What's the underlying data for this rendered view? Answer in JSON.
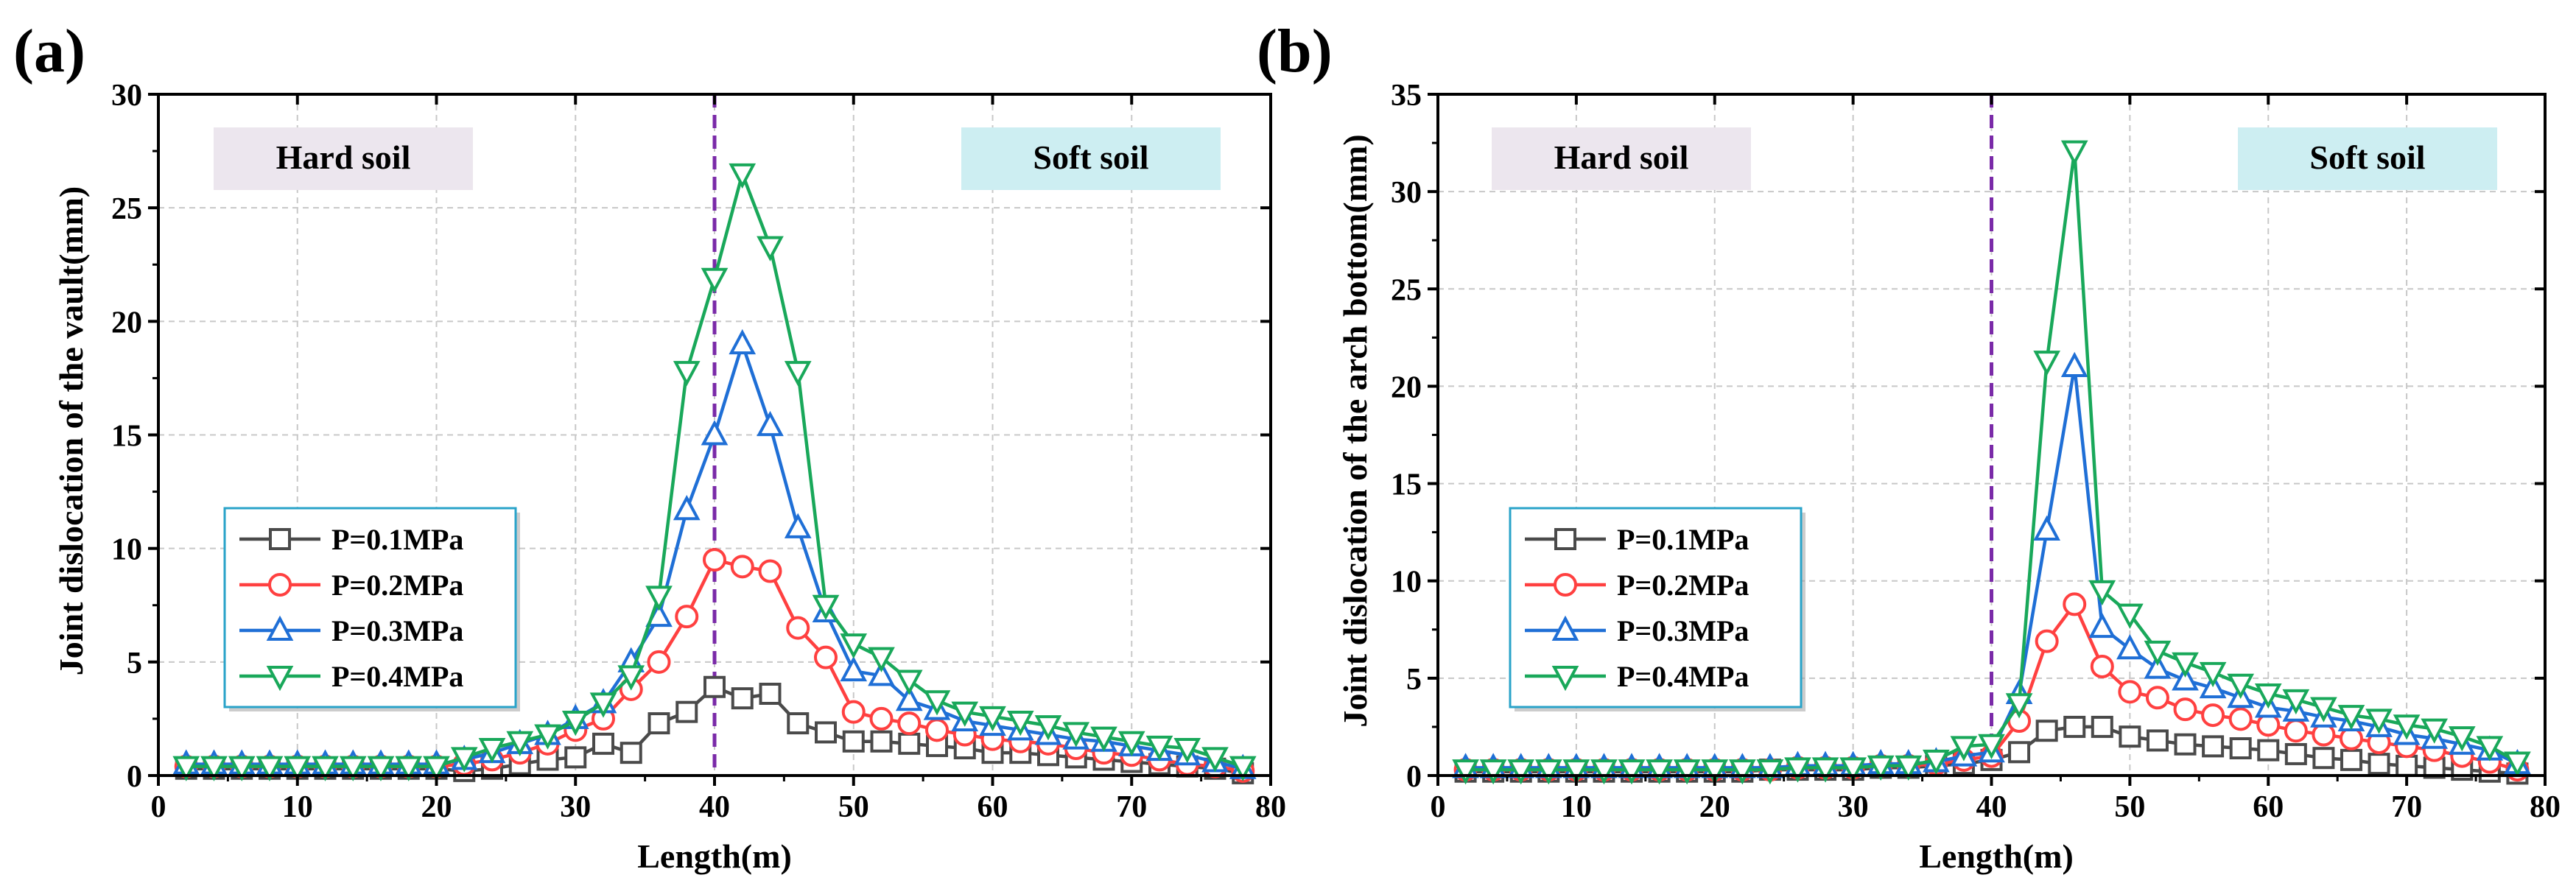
{
  "colors": {
    "s1": "#4a4a4a",
    "s2": "#ff4040",
    "s3": "#1f6fd6",
    "s4": "#19a85a",
    "panel_label": "#1a1ae6",
    "divider": "#7a2aa8",
    "hard_bg": "#ece6ee",
    "soft_bg": "#cdeef2",
    "legend_border": "#29a3c9"
  },
  "chart_data": [
    {
      "type": "line",
      "panel_label": "(a)",
      "title": "",
      "xlabel": "Length(m)",
      "ylabel": "Joint dislocation of the vault(mm)",
      "xlim": [
        0,
        80
      ],
      "ylim": [
        0,
        30
      ],
      "xticks": [
        0,
        10,
        20,
        30,
        40,
        50,
        60,
        70,
        80
      ],
      "yticks": [
        0,
        5,
        10,
        15,
        20,
        25,
        30
      ],
      "grid": true,
      "divider_x": 40,
      "region_labels": {
        "left": "Hard soil",
        "right": "Soft soil"
      },
      "legend_position": "lower-left",
      "x": [
        2,
        4,
        6,
        8,
        10,
        12,
        14,
        16,
        18,
        20,
        22,
        24,
        26,
        28,
        30,
        32,
        34,
        36,
        38,
        40,
        42,
        44,
        46,
        48,
        50,
        52,
        54,
        56,
        58,
        60,
        62,
        64,
        66,
        68,
        70,
        72,
        74,
        76,
        78
      ],
      "series": [
        {
          "name": "P=0.1MPa",
          "marker": "square",
          "values": [
            0.3,
            0.3,
            0.3,
            0.3,
            0.3,
            0.3,
            0.3,
            0.3,
            0.3,
            0.3,
            0.2,
            0.3,
            0.5,
            0.7,
            0.8,
            1.4,
            1.0,
            2.3,
            2.8,
            3.9,
            3.4,
            3.6,
            2.3,
            1.9,
            1.5,
            1.5,
            1.4,
            1.3,
            1.2,
            1.0,
            1.0,
            0.9,
            0.8,
            0.7,
            0.6,
            0.5,
            0.4,
            0.3,
            0.1
          ]
        },
        {
          "name": "P=0.2MPa",
          "marker": "circle",
          "values": [
            0.4,
            0.4,
            0.4,
            0.4,
            0.4,
            0.4,
            0.4,
            0.4,
            0.4,
            0.4,
            0.5,
            0.7,
            1.0,
            1.4,
            2.0,
            2.5,
            3.8,
            5.0,
            7.0,
            9.5,
            9.2,
            9.0,
            6.5,
            5.2,
            2.8,
            2.5,
            2.3,
            2.0,
            1.8,
            1.6,
            1.5,
            1.4,
            1.2,
            1.0,
            0.9,
            0.7,
            0.5,
            0.4,
            0.2
          ]
        },
        {
          "name": "P=0.3MPa",
          "marker": "triangle-up",
          "values": [
            0.5,
            0.5,
            0.5,
            0.5,
            0.5,
            0.5,
            0.5,
            0.5,
            0.5,
            0.5,
            0.7,
            1.0,
            1.4,
            1.8,
            2.5,
            3.2,
            5.0,
            7.0,
            11.7,
            15.0,
            19.0,
            15.4,
            10.9,
            7.2,
            4.6,
            4.4,
            3.3,
            2.9,
            2.4,
            2.2,
            2.0,
            1.8,
            1.6,
            1.5,
            1.3,
            1.1,
            0.9,
            0.6,
            0.3
          ]
        },
        {
          "name": "P=0.4MPa",
          "marker": "triangle-down",
          "values": [
            0.4,
            0.4,
            0.4,
            0.4,
            0.4,
            0.4,
            0.4,
            0.4,
            0.4,
            0.4,
            0.8,
            1.2,
            1.5,
            1.8,
            2.4,
            3.2,
            4.4,
            7.9,
            17.8,
            21.9,
            26.5,
            23.3,
            17.8,
            7.5,
            5.8,
            5.2,
            4.2,
            3.3,
            2.8,
            2.6,
            2.4,
            2.2,
            1.9,
            1.7,
            1.5,
            1.3,
            1.2,
            0.8,
            0.4
          ]
        }
      ]
    },
    {
      "type": "line",
      "panel_label": "(b)",
      "title": "",
      "xlabel": "Length(m)",
      "ylabel": "Joint dislocation of the arch bottom(mm)",
      "xlim": [
        0,
        80
      ],
      "ylim": [
        0,
        35
      ],
      "xticks": [
        0,
        10,
        20,
        30,
        40,
        50,
        60,
        70,
        80
      ],
      "yticks": [
        0,
        5,
        10,
        15,
        20,
        25,
        30,
        35
      ],
      "grid": true,
      "divider_x": 40,
      "region_labels": {
        "left": "Hard soil",
        "right": "Soft soil"
      },
      "legend_position": "lower-left",
      "x": [
        2,
        4,
        6,
        8,
        10,
        12,
        14,
        16,
        18,
        20,
        22,
        24,
        26,
        28,
        30,
        32,
        34,
        36,
        38,
        40,
        42,
        44,
        46,
        48,
        50,
        52,
        54,
        56,
        58,
        60,
        62,
        64,
        66,
        68,
        70,
        72,
        74,
        76,
        78
      ],
      "series": [
        {
          "name": "P=0.1MPa",
          "marker": "square",
          "values": [
            0.2,
            0.2,
            0.2,
            0.2,
            0.2,
            0.2,
            0.2,
            0.2,
            0.2,
            0.2,
            0.2,
            0.3,
            0.3,
            0.3,
            0.3,
            0.4,
            0.4,
            0.5,
            0.6,
            0.8,
            1.2,
            2.3,
            2.5,
            2.5,
            2.0,
            1.8,
            1.6,
            1.5,
            1.4,
            1.3,
            1.1,
            0.9,
            0.8,
            0.6,
            0.5,
            0.4,
            0.3,
            0.2,
            0.1
          ]
        },
        {
          "name": "P=0.2MPa",
          "marker": "circle",
          "values": [
            0.3,
            0.3,
            0.3,
            0.3,
            0.3,
            0.3,
            0.3,
            0.3,
            0.3,
            0.3,
            0.3,
            0.3,
            0.4,
            0.4,
            0.4,
            0.5,
            0.5,
            0.6,
            0.8,
            1.0,
            2.8,
            6.9,
            8.8,
            5.6,
            4.3,
            4.0,
            3.4,
            3.1,
            2.9,
            2.6,
            2.3,
            2.1,
            1.9,
            1.7,
            1.5,
            1.3,
            1.0,
            0.7,
            0.3
          ]
        },
        {
          "name": "P=0.3MPa",
          "marker": "triangle-up",
          "values": [
            0.4,
            0.4,
            0.4,
            0.4,
            0.4,
            0.4,
            0.4,
            0.4,
            0.4,
            0.4,
            0.4,
            0.4,
            0.5,
            0.5,
            0.5,
            0.6,
            0.6,
            0.7,
            1.0,
            1.2,
            4.2,
            12.6,
            21.0,
            7.6,
            6.5,
            5.5,
            4.9,
            4.5,
            4.0,
            3.5,
            3.3,
            3.0,
            2.8,
            2.5,
            2.1,
            1.9,
            1.6,
            1.3,
            0.6
          ]
        },
        {
          "name": "P=0.4MPa",
          "marker": "triangle-down",
          "values": [
            0.3,
            0.3,
            0.3,
            0.3,
            0.3,
            0.3,
            0.3,
            0.3,
            0.3,
            0.3,
            0.3,
            0.3,
            0.4,
            0.4,
            0.4,
            0.5,
            0.5,
            0.8,
            1.5,
            1.6,
            3.7,
            21.3,
            32.1,
            9.5,
            8.3,
            6.4,
            5.8,
            5.3,
            4.7,
            4.2,
            3.9,
            3.5,
            3.1,
            2.9,
            2.6,
            2.4,
            2.0,
            1.5,
            0.7
          ]
        }
      ]
    }
  ]
}
